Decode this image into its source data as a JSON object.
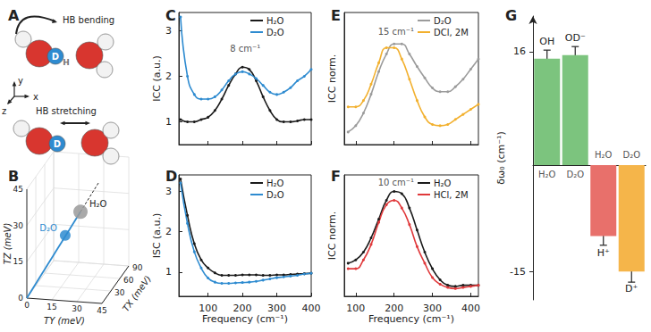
{
  "chart_data": [
    {
      "type": "line",
      "title": "C",
      "ylabel": "ICC (a.u.)",
      "x": [
        20,
        40,
        60,
        80,
        100,
        120,
        140,
        160,
        180,
        200,
        220,
        240,
        260,
        280,
        300,
        320,
        340,
        360,
        380,
        400
      ],
      "xlim": [
        15,
        400
      ],
      "xticks": [
        100,
        200,
        300,
        400
      ],
      "ylim": [
        0.5,
        3.4
      ],
      "yticks": [
        1,
        2,
        3
      ],
      "tick_labels": "y",
      "legend": "upper right",
      "series": [
        {
          "name": "H₂O",
          "color": "#1a1a1a",
          "values": [
            1.05,
            1.0,
            1.0,
            1.05,
            1.1,
            1.25,
            1.5,
            1.8,
            2.05,
            2.2,
            2.15,
            1.9,
            1.55,
            1.25,
            1.05,
            1.0,
            1.0,
            1.02,
            1.05,
            1.05
          ]
        },
        {
          "name": "D₂O",
          "color": "#2e8bd0",
          "values": [
            3.3,
            2.0,
            1.6,
            1.5,
            1.5,
            1.55,
            1.7,
            1.9,
            2.05,
            2.1,
            2.05,
            1.95,
            1.8,
            1.65,
            1.6,
            1.65,
            1.75,
            1.9,
            2.0,
            2.15
          ]
        }
      ],
      "annotations": [
        {
          "text": "8 cm⁻¹",
          "x": 208,
          "y": 2.6
        }
      ]
    },
    {
      "type": "line",
      "title": "D",
      "xlabel": "Frequency (cm⁻¹)",
      "ylabel": "ISC (a.u.)",
      "x": [
        20,
        40,
        60,
        80,
        100,
        120,
        140,
        160,
        180,
        200,
        220,
        240,
        260,
        280,
        300,
        320,
        340,
        360,
        380,
        400
      ],
      "xlim": [
        15,
        400
      ],
      "xticks": [
        100,
        200,
        300,
        400
      ],
      "ylim": [
        0.4,
        3.4
      ],
      "yticks": [
        1,
        2,
        3
      ],
      "legend": "upper right",
      "series": [
        {
          "name": "H₂O",
          "color": "#1a1a1a",
          "values": [
            3.3,
            2.4,
            1.7,
            1.3,
            1.1,
            0.98,
            0.92,
            0.92,
            0.92,
            0.93,
            0.93,
            0.93,
            0.92,
            0.92,
            0.93,
            0.93,
            0.94,
            0.95,
            0.96,
            0.97
          ]
        },
        {
          "name": "D₂O",
          "color": "#2e8bd0",
          "values": [
            3.2,
            2.2,
            1.5,
            1.1,
            0.85,
            0.75,
            0.72,
            0.72,
            0.73,
            0.74,
            0.75,
            0.77,
            0.8,
            0.83,
            0.86,
            0.88,
            0.9,
            0.92,
            0.95,
            0.97
          ]
        }
      ]
    },
    {
      "type": "line",
      "title": "E",
      "ylabel": "ICC norm.",
      "x": [
        80,
        100,
        120,
        140,
        160,
        180,
        200,
        220,
        240,
        260,
        280,
        300,
        320,
        340,
        360,
        380,
        400,
        420
      ],
      "xlim": [
        70,
        420
      ],
      "xticks": [
        100,
        200,
        300,
        400
      ],
      "ylim": [
        0.2,
        1.25
      ],
      "tick_labels": false,
      "legend": "upper right",
      "series": [
        {
          "name": "D₂O",
          "color": "#9b9b9b",
          "values": [
            0.3,
            0.35,
            0.45,
            0.6,
            0.78,
            0.92,
            1.0,
            1.0,
            0.92,
            0.82,
            0.73,
            0.65,
            0.62,
            0.62,
            0.66,
            0.72,
            0.8,
            0.88
          ]
        },
        {
          "name": "DCl, 2M",
          "color": "#f2b02e",
          "values": [
            0.5,
            0.5,
            0.55,
            0.68,
            0.85,
            0.97,
            0.97,
            0.88,
            0.72,
            0.55,
            0.42,
            0.36,
            0.35,
            0.36,
            0.4,
            0.44,
            0.48,
            0.52
          ]
        }
      ],
      "annotations": [
        {
          "text": "15 cm⁻¹",
          "x": 205,
          "y": 1.1
        }
      ]
    },
    {
      "type": "line",
      "title": "F",
      "xlabel": "Frequency (cm⁻¹)",
      "ylabel": "ICC norm.",
      "x": [
        80,
        100,
        120,
        140,
        160,
        180,
        200,
        220,
        240,
        260,
        280,
        300,
        320,
        340,
        360,
        380,
        400,
        420
      ],
      "xlim": [
        70,
        420
      ],
      "xticks": [
        100,
        200,
        300,
        400
      ],
      "ylim": [
        0.05,
        1.15
      ],
      "tick_labels": "x",
      "legend": "upper right",
      "series": [
        {
          "name": "H₂O",
          "color": "#1a1a1a",
          "values": [
            0.35,
            0.38,
            0.45,
            0.58,
            0.75,
            0.92,
            1.0,
            0.98,
            0.85,
            0.65,
            0.45,
            0.3,
            0.2,
            0.15,
            0.14,
            0.15,
            0.15,
            0.15
          ]
        },
        {
          "name": "HCl, 2M",
          "color": "#e0393b",
          "values": [
            0.3,
            0.3,
            0.38,
            0.52,
            0.72,
            0.88,
            0.92,
            0.85,
            0.7,
            0.5,
            0.35,
            0.22,
            0.16,
            0.13,
            0.12,
            0.13,
            0.14,
            0.15
          ]
        }
      ],
      "annotations": [
        {
          "text": "10 cm⁻¹",
          "x": 205,
          "y": 1.08
        }
      ]
    },
    {
      "type": "bar",
      "title": "G",
      "ylabel": "δω₀ (cm⁻¹)",
      "categories": [
        "OH",
        "OD⁻",
        "H⁺",
        "D⁺"
      ],
      "solvents": [
        "H₂O",
        "D₂O",
        "H₂O",
        "D₂O"
      ],
      "values": [
        15,
        15.5,
        -10,
        -15
      ],
      "errors": [
        1.2,
        1.2,
        1.3,
        1.5
      ],
      "colors": [
        "#7cc47e",
        "#7cc47e",
        "#e8706b",
        "#f5b54a"
      ],
      "ylim": [
        -19,
        21
      ],
      "yticks": [
        -15,
        16
      ]
    }
  ],
  "panel_A": {
    "title": "A",
    "bending": "HB bending",
    "stretching": "HB stretching",
    "atom_labels": [
      "D",
      "H"
    ],
    "axis_labels": [
      "x",
      "y",
      "z"
    ]
  },
  "panel_B": {
    "title": "B",
    "xlabel": "TX (meV)",
    "ylabel": "TY (meV)",
    "zlabel": "TZ (meV)",
    "xlim": [
      0,
      90
    ],
    "xticks": [
      30,
      60,
      90
    ],
    "ylim": [
      0,
      45
    ],
    "yticks": [
      0,
      15,
      30,
      45
    ],
    "zlim": [
      0,
      45
    ],
    "zticks": [
      0,
      15,
      30,
      45
    ],
    "points": [
      {
        "name": "H₂O",
        "color": "#9a9a9a",
        "x": 40,
        "y": 25,
        "z": 30
      },
      {
        "name": "D₂O",
        "color": "#2e8bd0",
        "x": 28,
        "y": 18,
        "z": 22
      }
    ]
  }
}
